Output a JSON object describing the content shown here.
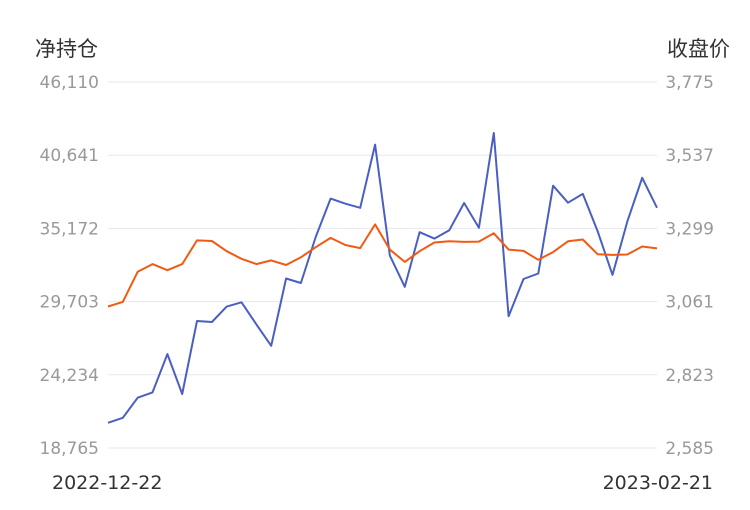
{
  "chart_data": {
    "type": "line",
    "left_axis_title": "净持仓",
    "right_axis_title": "收盘价",
    "left_ticks": [
      "46,110",
      "40,641",
      "35,172",
      "29,703",
      "24,234",
      "18,765"
    ],
    "right_ticks": [
      "3,775",
      "3,537",
      "3,299",
      "3,061",
      "2,823",
      "2,585"
    ],
    "left_ylim": [
      18765,
      46110
    ],
    "right_ylim": [
      2585,
      3775
    ],
    "x_start_label": "2022-12-22",
    "x_end_label": "2023-02-21",
    "grid": true,
    "series": [
      {
        "axis": "left",
        "color": "#4a5fc1",
        "values": [
          20650,
          21020,
          22520,
          22920,
          25780,
          22800,
          28250,
          28180,
          29330,
          29650,
          28000,
          26400,
          31430,
          31090,
          34530,
          37400,
          37020,
          36710,
          41430,
          33130,
          30810,
          34890,
          34410,
          35040,
          37070,
          35220,
          42300,
          28610,
          31390,
          31800,
          38360,
          37090,
          37750,
          34970,
          31700,
          35680,
          38950,
          36710
        ]
      },
      {
        "axis": "right",
        "color": "#f05a14",
        "values": [
          3045,
          3060,
          3158,
          3183,
          3163,
          3183,
          3260,
          3258,
          3225,
          3200,
          3183,
          3195,
          3180,
          3205,
          3238,
          3268,
          3245,
          3235,
          3312,
          3230,
          3190,
          3225,
          3253,
          3257,
          3255,
          3256,
          3283,
          3230,
          3226,
          3197,
          3222,
          3257,
          3263,
          3215,
          3213,
          3214,
          3240,
          3234
        ]
      }
    ]
  }
}
